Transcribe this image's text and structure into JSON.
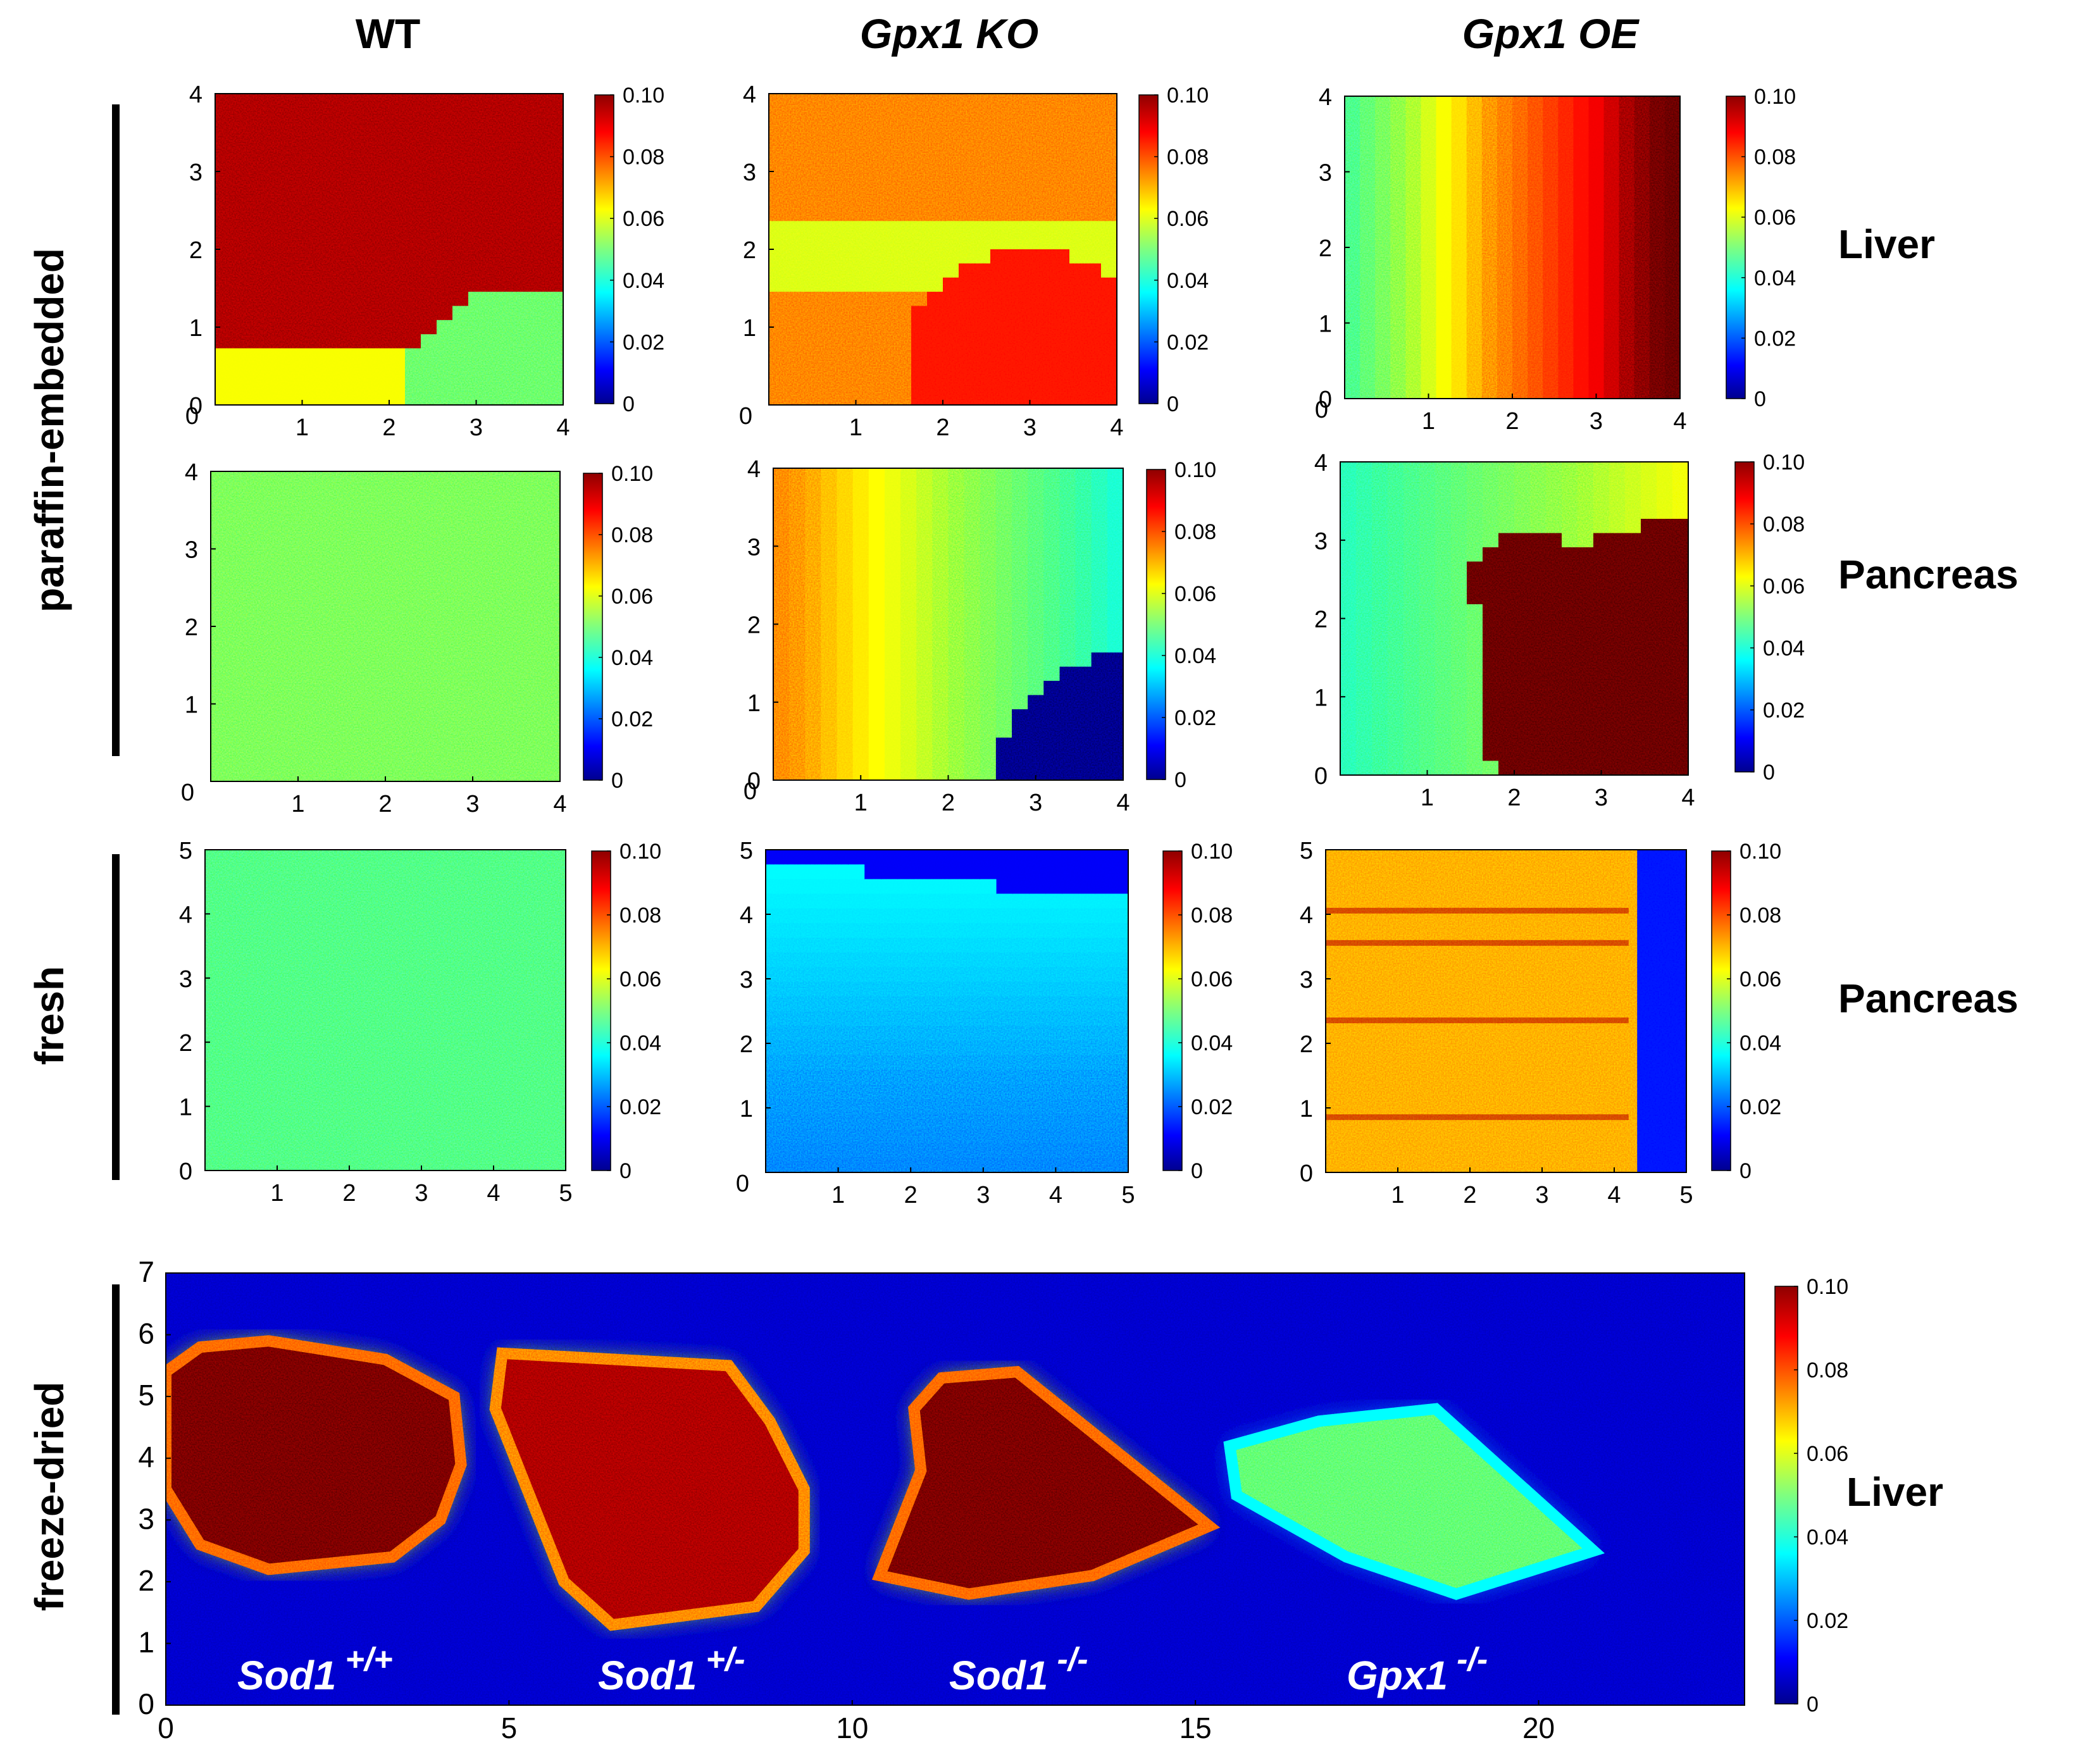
{
  "column_titles": [
    {
      "text": "WT",
      "italic": false
    },
    {
      "text": "Gpx1 KO",
      "italic": true
    },
    {
      "text": "Gpx1 OE",
      "italic": true
    }
  ],
  "group_labels": [
    "paraffin-embedded",
    "fresh",
    "freeze-dried"
  ],
  "row_labels": [
    "Liver",
    "Pancreas",
    "Pancreas",
    "Liver"
  ],
  "colors": {
    "colormap": "jet",
    "low": "#00008f",
    "mid": "#3cc878",
    "high": "#8f0000",
    "background": "#ffffff"
  },
  "chart_data": [
    {
      "type": "heatmap",
      "row": "paraffin-embedded Liver",
      "column": "WT",
      "xlim": [
        0,
        4
      ],
      "ylim": [
        0,
        4
      ],
      "xticks": [
        "1",
        "2",
        "3",
        "4"
      ],
      "yticks": [
        "0",
        "1",
        "2",
        "3",
        "4"
      ],
      "origin_label": "0",
      "colorbar": {
        "range": [
          0,
          0.1
        ],
        "ticks": [
          "0",
          "0.02",
          "0.04",
          "0.06",
          "0.08",
          "0.10"
        ]
      },
      "pattern": "high signal (~0.09-0.10) over most of the area, lower (~0.05) in bottom-right corner"
    },
    {
      "type": "heatmap",
      "row": "paraffin-embedded Liver",
      "column": "Gpx1 KO",
      "xlim": [
        0,
        4
      ],
      "ylim": [
        0,
        4
      ],
      "xticks": [
        "1",
        "2",
        "3",
        "4"
      ],
      "yticks": [
        "1",
        "2",
        "3",
        "4"
      ],
      "origin_label": "0",
      "colorbar": {
        "range": [
          0,
          0.1
        ],
        "ticks": [
          "0",
          "0.02",
          "0.04",
          "0.06",
          "0.08",
          "0.10"
        ]
      },
      "pattern": "moderate signal (~0.07), lower band across middle, higher blob lower right"
    },
    {
      "type": "heatmap",
      "row": "paraffin-embedded Liver",
      "column": "Gpx1 OE",
      "xlim": [
        0,
        4
      ],
      "ylim": [
        0,
        4
      ],
      "xticks": [
        "1",
        "2",
        "3",
        "4"
      ],
      "yticks": [
        "0",
        "1",
        "2",
        "3",
        "4"
      ],
      "origin_label": "0",
      "colorbar": {
        "range": [
          0,
          0.1
        ],
        "ticks": [
          "0",
          "0.02",
          "0.04",
          "0.06",
          "0.08",
          "0.10"
        ]
      },
      "pattern": "gradient from ~0.05 on left to ~0.10 on right"
    },
    {
      "type": "heatmap",
      "row": "paraffin-embedded Pancreas",
      "column": "WT",
      "xlim": [
        0,
        4
      ],
      "ylim": [
        0,
        4
      ],
      "xticks": [
        "1",
        "2",
        "3",
        "4"
      ],
      "yticks": [
        "1",
        "2",
        "3",
        "4"
      ],
      "origin_label": "0",
      "colorbar": {
        "range": [
          0,
          0.1
        ],
        "ticks": [
          "0",
          "0.02",
          "0.04",
          "0.06",
          "0.08",
          "0.10"
        ]
      },
      "pattern": "uniform signal ~0.05"
    },
    {
      "type": "heatmap",
      "row": "paraffin-embedded Pancreas",
      "column": "Gpx1 KO",
      "xlim": [
        0,
        4
      ],
      "ylim": [
        0,
        4
      ],
      "xticks": [
        "1",
        "2",
        "3",
        "4"
      ],
      "yticks": [
        "0",
        "1",
        "2",
        "3",
        "4"
      ],
      "origin_label": "0",
      "colorbar": {
        "range": [
          0,
          0.1
        ],
        "ticks": [
          "0",
          "0.02",
          "0.04",
          "0.06",
          "0.08",
          "0.10"
        ]
      },
      "pattern": "~0.07 at left fading to ~0.04 at right, empty (~0.005) region bottom-right"
    },
    {
      "type": "heatmap",
      "row": "paraffin-embedded Pancreas",
      "column": "Gpx1 OE",
      "xlim": [
        0,
        4
      ],
      "ylim": [
        0,
        4
      ],
      "xticks": [
        "1",
        "2",
        "3",
        "4"
      ],
      "yticks": [
        "0",
        "1",
        "2",
        "3",
        "4"
      ],
      "origin_label": "",
      "colorbar": {
        "range": [
          0,
          0.1
        ],
        "ticks": [
          "0",
          "0.02",
          "0.04",
          "0.06",
          "0.08",
          "0.10"
        ]
      },
      "pattern": "~0.04 on left, saturated ~0.10 region on right side"
    },
    {
      "type": "heatmap",
      "row": "fresh Pancreas",
      "column": "WT",
      "xlim": [
        0,
        5
      ],
      "ylim": [
        0,
        5
      ],
      "xticks": [
        "1",
        "2",
        "3",
        "4",
        "5"
      ],
      "yticks": [
        "0",
        "1",
        "2",
        "3",
        "4",
        "5"
      ],
      "origin_label": "",
      "colorbar": {
        "range": [
          0,
          0.1
        ],
        "ticks": [
          "0",
          "0.02",
          "0.04",
          "0.06",
          "0.08",
          "0.10"
        ]
      },
      "pattern": "uniform noisy signal ~0.045"
    },
    {
      "type": "heatmap",
      "row": "fresh Pancreas",
      "column": "Gpx1 KO",
      "xlim": [
        0,
        5
      ],
      "ylim": [
        0,
        5
      ],
      "xticks": [
        "1",
        "2",
        "3",
        "4",
        "5"
      ],
      "yticks": [
        "1",
        "2",
        "3",
        "4",
        "5"
      ],
      "origin_label": "0",
      "colorbar": {
        "range": [
          0,
          0.1
        ],
        "ticks": [
          "0",
          "0.02",
          "0.04",
          "0.06",
          "0.08",
          "0.10"
        ]
      },
      "pattern": "~0.035 signal, low (~0.01) band along the top edge"
    },
    {
      "type": "heatmap",
      "row": "fresh Pancreas",
      "column": "Gpx1 OE",
      "xlim": [
        0,
        5
      ],
      "ylim": [
        0,
        5
      ],
      "xticks": [
        "1",
        "2",
        "3",
        "4",
        "5"
      ],
      "yticks": [
        "0",
        "1",
        "2",
        "3",
        "4",
        "5"
      ],
      "origin_label": "",
      "colorbar": {
        "range": [
          0,
          0.1
        ],
        "ticks": [
          "0",
          "0.02",
          "0.04",
          "0.06",
          "0.08",
          "0.10"
        ]
      },
      "pattern": "~0.07 signal with brighter horizontal streaks, low region at right edge beyond x≈4.3"
    },
    {
      "type": "heatmap",
      "row": "freeze-dried Liver",
      "column": "all",
      "xlim": [
        0,
        23
      ],
      "ylim": [
        0,
        7
      ],
      "xticks": [
        "0",
        "5",
        "10",
        "15",
        "20"
      ],
      "yticks": [
        "0",
        "1",
        "2",
        "3",
        "4",
        "5",
        "6",
        "7"
      ],
      "colorbar": {
        "range": [
          0,
          0.1
        ],
        "ticks": [
          "0",
          "0.02",
          "0.04",
          "0.06",
          "0.08",
          "0.10"
        ]
      },
      "samples": [
        {
          "genotype": "Sod1",
          "superscript": "+/+",
          "x_range": [
            0,
            4.3
          ],
          "level": 0.1
        },
        {
          "genotype": "Sod1",
          "superscript": "+/-",
          "x_range": [
            4.8,
            9.3
          ],
          "level": 0.095
        },
        {
          "genotype": "Sod1",
          "superscript": "-/-",
          "x_range": [
            10.3,
            15.2
          ],
          "level": 0.1
        },
        {
          "genotype": "Gpx1",
          "superscript": "-/-",
          "x_range": [
            15.5,
            20.8
          ],
          "level": 0.05
        }
      ]
    }
  ]
}
